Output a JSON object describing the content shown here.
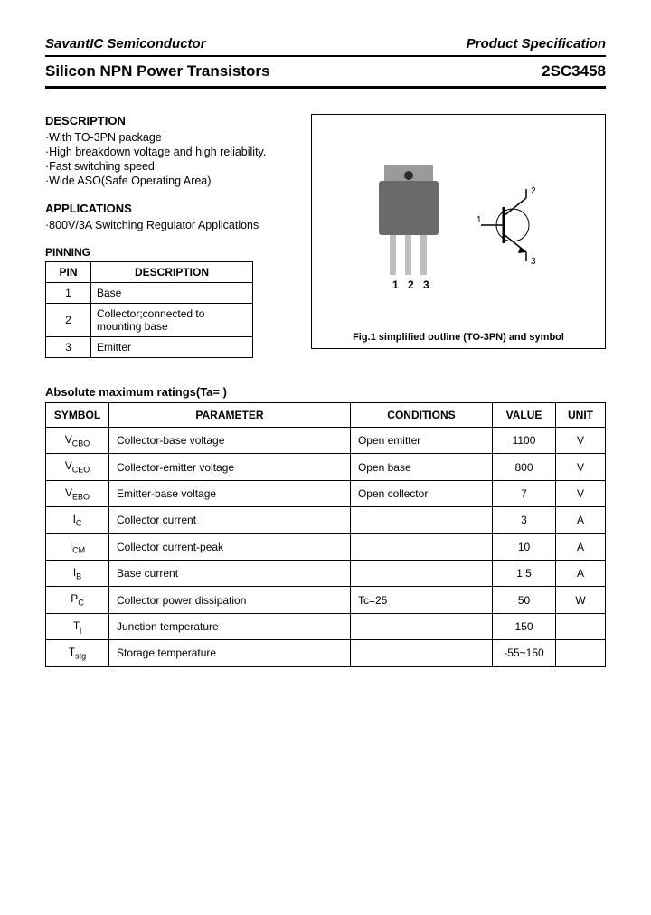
{
  "header": {
    "company": "SavantIC Semiconductor",
    "docType": "Product Specification",
    "title": "Silicon NPN Power Transistors",
    "partNumber": "2SC3458"
  },
  "description": {
    "heading": "DESCRIPTION",
    "items": [
      "·With TO-3PN package",
      "·High breakdown voltage and high reliability.",
      "·Fast switching speed",
      "·Wide ASO(Safe Operating Area)"
    ]
  },
  "applications": {
    "heading": "APPLICATIONS",
    "items": [
      "·800V/3A Switching Regulator Applications"
    ]
  },
  "pinning": {
    "heading": "PINNING",
    "columns": [
      "PIN",
      "DESCRIPTION"
    ],
    "rows": [
      {
        "pin": "1",
        "desc": "Base"
      },
      {
        "pin": "2",
        "desc": "Collector;connected to mounting base"
      },
      {
        "pin": "3",
        "desc": "Emitter"
      }
    ]
  },
  "figure": {
    "pinLabels": [
      "1",
      "2",
      "3"
    ],
    "symbolLabels": {
      "base": "1",
      "collector": "2",
      "emitter": "3"
    },
    "caption": "Fig.1 simplified outline (TO-3PN) and symbol",
    "colors": {
      "packageBody": "#6a6a6a",
      "packageTab": "#9a9a9a",
      "leads": "#bfbfbf",
      "hole": "#2b2b2b"
    }
  },
  "ratings": {
    "heading": "Absolute maximum ratings(Ta=  )",
    "columns": [
      "SYMBOL",
      "PARAMETER",
      "CONDITIONS",
      "VALUE",
      "UNIT"
    ],
    "rows": [
      {
        "symbol": "V",
        "sub": "CBO",
        "param": "Collector-base voltage",
        "cond": "Open emitter",
        "value": "1100",
        "unit": "V"
      },
      {
        "symbol": "V",
        "sub": "CEO",
        "param": "Collector-emitter voltage",
        "cond": "Open base",
        "value": "800",
        "unit": "V"
      },
      {
        "symbol": "V",
        "sub": "EBO",
        "param": "Emitter-base voltage",
        "cond": "Open collector",
        "value": "7",
        "unit": "V"
      },
      {
        "symbol": "I",
        "sub": "C",
        "param": "Collector current",
        "cond": "",
        "value": "3",
        "unit": "A"
      },
      {
        "symbol": "I",
        "sub": "CM",
        "param": "Collector current-peak",
        "cond": "",
        "value": "10",
        "unit": "A"
      },
      {
        "symbol": "I",
        "sub": "B",
        "param": "Base current",
        "cond": "",
        "value": "1.5",
        "unit": "A"
      },
      {
        "symbol": "P",
        "sub": "C",
        "param": "Collector power dissipation",
        "cond": "Tc=25  ",
        "value": "50",
        "unit": "W"
      },
      {
        "symbol": "T",
        "sub": "j",
        "param": "Junction temperature",
        "cond": "",
        "value": "150",
        "unit": " "
      },
      {
        "symbol": "T",
        "sub": "stg",
        "param": "Storage temperature",
        "cond": "",
        "value": "-55~150",
        "unit": " "
      }
    ]
  }
}
